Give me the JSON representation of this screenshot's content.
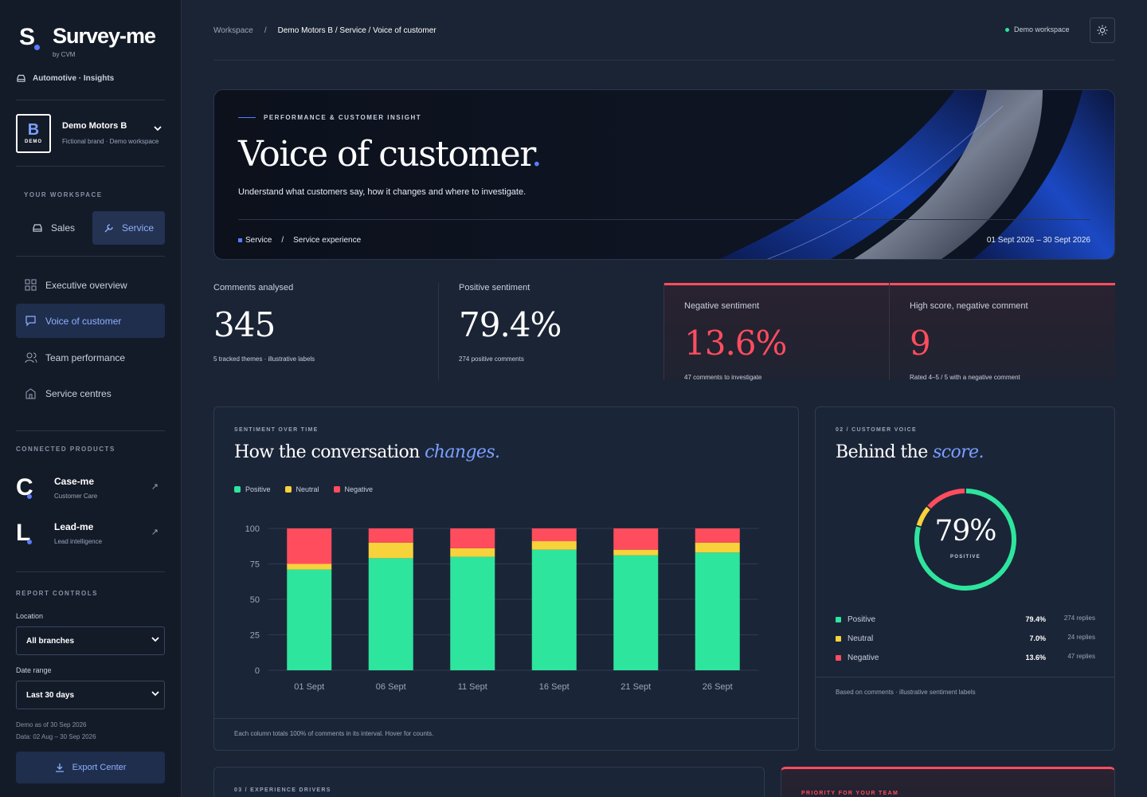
{
  "brand": {
    "title": "Survey-me",
    "sub": "by CVM",
    "mark": "S"
  },
  "industry": "Automotive · Insights",
  "account": {
    "logo_letter": "B",
    "logo_tag": "DEMO",
    "name": "Demo Motors B",
    "desc": "Fictional brand · Demo workspace"
  },
  "workspace": {
    "label": "YOUR WORKSPACE",
    "sales": "Sales",
    "service": "Service"
  },
  "nav": [
    {
      "label": "Executive overview",
      "icon": "grid-icon"
    },
    {
      "label": "Voice of customer",
      "icon": "chat-icon",
      "active": true
    },
    {
      "label": "Team performance",
      "icon": "users-icon"
    },
    {
      "label": "Service centres",
      "icon": "building-icon"
    }
  ],
  "products": {
    "label": "CONNECTED PRODUCTS",
    "items": [
      {
        "mark": "C",
        "name": "Case-me",
        "desc": "Customer Care"
      },
      {
        "mark": "L",
        "name": "Lead-me",
        "desc": "Lead intelligence"
      }
    ]
  },
  "controls": {
    "label": "REPORT CONTROLS",
    "location_label": "Location",
    "location_value": "All branches",
    "date_label": "Date range",
    "date_value": "Last 30 days",
    "meta1": "Demo as of 30 Sep 2026",
    "meta2": "Data: 02 Aug – 30 Sep 2026",
    "export": "Export Center"
  },
  "breadcrumb": {
    "root": "Workspace",
    "sep": "/",
    "current": "Demo Motors B / Service / Voice of customer"
  },
  "workspace_status": "Demo workspace",
  "hero": {
    "kicker": "PERFORMANCE & CUSTOMER INSIGHT",
    "title": "Voice of customer",
    "title_dot": ".",
    "subtitle": "Understand what customers say, how it changes and where to investigate.",
    "tag1": "Service",
    "tag_sep": "/",
    "tag2": "Service experience",
    "date": "01 Sept 2026 – 30 Sept 2026"
  },
  "kpis": [
    {
      "label": "Comments analysed",
      "value": "345",
      "note": "5 tracked themes · illustrative labels"
    },
    {
      "label": "Positive sentiment",
      "value": "79.4%",
      "note": "274 positive comments"
    },
    {
      "label": "Negative sentiment",
      "value": "13.6%",
      "note": "47 comments to investigate"
    },
    {
      "label": "High score, negative comment",
      "value": "9",
      "note": "Rated 4–5 / 5 with a negative comment"
    }
  ],
  "sentiment_panel": {
    "kicker": "SENTIMENT OVER TIME",
    "title": "How the conversation ",
    "title_em": "changes.",
    "legend": [
      "Positive",
      "Neutral",
      "Negative"
    ],
    "footnote": "Each column totals 100% of comments in its interval. Hover for counts."
  },
  "score_panel": {
    "kicker": "02 / CUSTOMER VOICE",
    "title": "Behind the ",
    "title_em": "score.",
    "donut_value": "79%",
    "donut_label": "POSITIVE",
    "rows": [
      {
        "name": "Positive",
        "pct": "79.4%",
        "count": "274 replies"
      },
      {
        "name": "Neutral",
        "pct": "7.0%",
        "count": "24 replies"
      },
      {
        "name": "Negative",
        "pct": "13.6%",
        "count": "47 replies"
      }
    ],
    "footnote": "Based on comments · illustrative sentiment labels"
  },
  "bottom": {
    "left_kicker": "03 / EXPERIENCE DRIVERS",
    "right_kicker": "PRIORITY FOR YOUR TEAM"
  },
  "colors": {
    "positive": "#2ee59d",
    "neutral": "#f7d23b",
    "negative": "#ff4d5e",
    "accent": "#5b7bff"
  },
  "chart_data": {
    "type": "bar",
    "stacked": true,
    "categories": [
      "01 Sept",
      "06 Sept",
      "11 Sept",
      "16 Sept",
      "21 Sept",
      "26 Sept"
    ],
    "series": [
      {
        "name": "Positive",
        "values": [
          71,
          79,
          80,
          85,
          81,
          83
        ]
      },
      {
        "name": "Neutral",
        "values": [
          4,
          11,
          6,
          6,
          4,
          7
        ]
      },
      {
        "name": "Negative",
        "values": [
          25,
          10,
          14,
          9,
          15,
          10
        ]
      }
    ],
    "yticks": [
      0,
      25,
      50,
      75,
      100
    ],
    "ylim": [
      0,
      100
    ],
    "legend_position": "top-left",
    "grid": true,
    "donut": {
      "type": "pie",
      "labels": [
        "Positive",
        "Neutral",
        "Negative"
      ],
      "values": [
        79.4,
        7.0,
        13.6
      ]
    }
  }
}
